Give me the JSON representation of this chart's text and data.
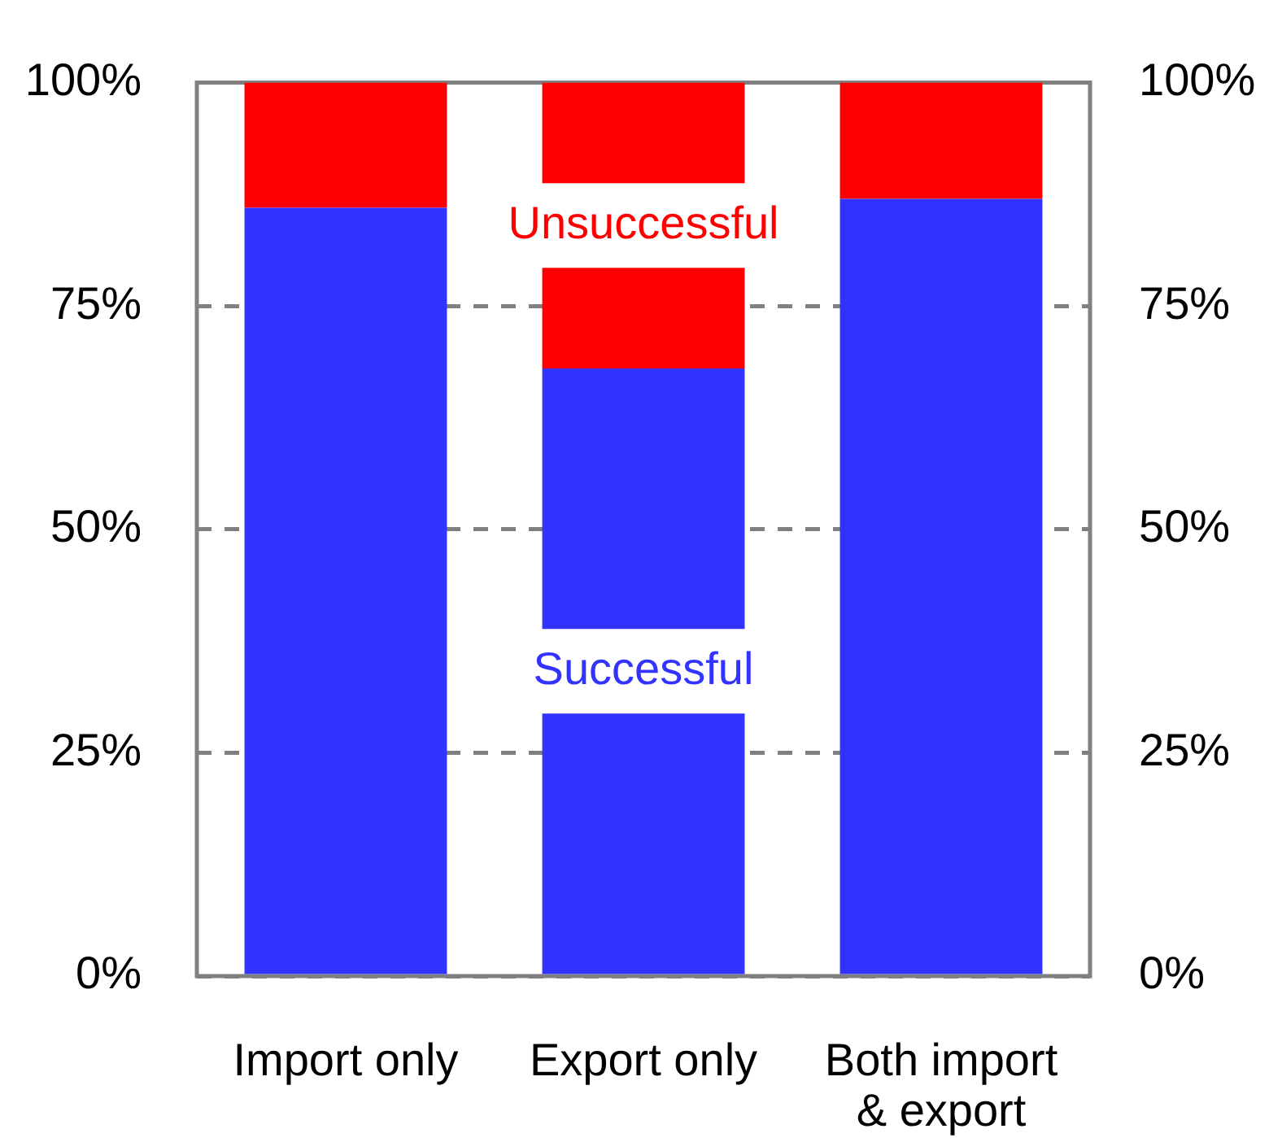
{
  "chart_data": {
    "type": "bar",
    "stacked": true,
    "categories": [
      "Import only",
      "Export only",
      "Both import & export"
    ],
    "series": [
      {
        "name": "Successful",
        "color": "#3333ff",
        "values": [
          86,
          68,
          87
        ]
      },
      {
        "name": "Unsuccessful",
        "color": "#ff0000",
        "values": [
          14,
          32,
          13
        ]
      }
    ],
    "ylim": [
      0,
      100
    ],
    "yticks": [
      {
        "value": 0,
        "label": "0%"
      },
      {
        "value": 25,
        "label": "25%"
      },
      {
        "value": 50,
        "label": "50%"
      },
      {
        "value": 75,
        "label": "75%"
      },
      {
        "value": 100,
        "label": "100%"
      }
    ],
    "y2lim": [
      0,
      100
    ],
    "y2ticks": [
      {
        "value": 0,
        "label": "0%"
      },
      {
        "value": 25,
        "label": "25%"
      },
      {
        "value": 50,
        "label": "50%"
      },
      {
        "value": 75,
        "label": "75%"
      },
      {
        "value": 100,
        "label": "100%"
      }
    ],
    "grid": "y"
  }
}
